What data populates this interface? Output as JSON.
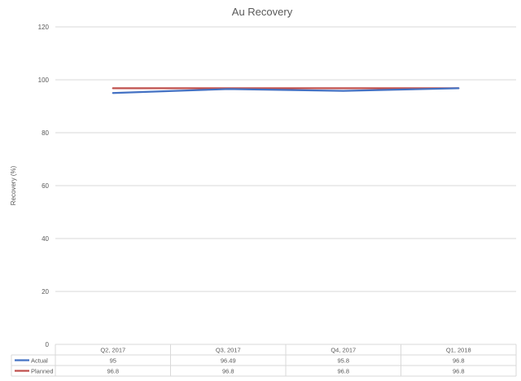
{
  "chart_data": {
    "type": "line",
    "title": "Au Recovery",
    "ylabel": "Recovery (%)",
    "xlabel": "",
    "categories": [
      "Q2, 2017",
      "Q3, 2017",
      "Q4, 2017",
      "Q1, 2018"
    ],
    "ylim": [
      0,
      120
    ],
    "yticks": [
      0,
      20,
      40,
      60,
      80,
      100,
      120
    ],
    "grid": true,
    "legend": "data-table",
    "series": [
      {
        "name": "Actual",
        "values": [
          95,
          96.49,
          95.8,
          96.8
        ],
        "labels": [
          "95",
          "96.49",
          "95.8",
          "96.8"
        ],
        "color": "#4472C4"
      },
      {
        "name": "Planned",
        "values": [
          96.8,
          96.8,
          96.8,
          96.8
        ],
        "labels": [
          "96.8",
          "96.8",
          "96.8",
          "96.8"
        ],
        "color": "#C0504D"
      }
    ]
  }
}
